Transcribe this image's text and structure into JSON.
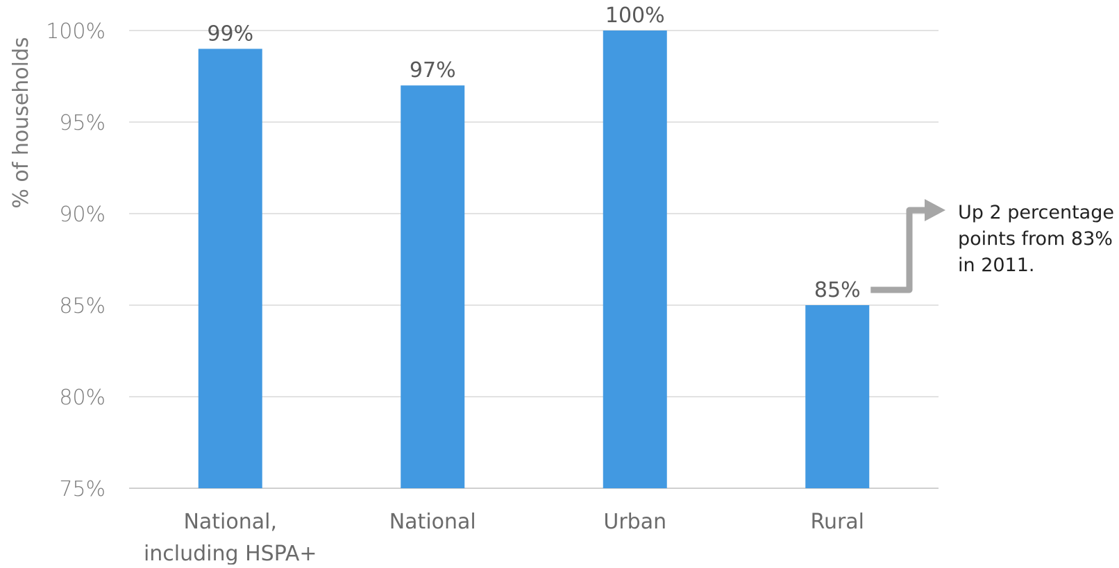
{
  "chart_data": {
    "type": "bar",
    "categories": [
      [
        "National,",
        "including HSPA+"
      ],
      [
        "National"
      ],
      [
        "Urban"
      ],
      [
        "Rural"
      ]
    ],
    "values": [
      99,
      97,
      100,
      85
    ],
    "data_labels": [
      "99%",
      "97%",
      "100%",
      "85%"
    ],
    "ylabel": "% of households",
    "ylim": [
      75,
      100
    ],
    "yticks": [
      75,
      80,
      85,
      90,
      95,
      100
    ],
    "ytick_labels": [
      "75%",
      "80%",
      "85%",
      "90%",
      "95%",
      "100%"
    ],
    "grid": true,
    "colors": {
      "bar": "#4299e1",
      "annotation_arrow": "#a6a6a6"
    },
    "annotation": {
      "target_category_index": 3,
      "lines": [
        "Up 2 percentage",
        "points from 83%",
        "in 2011."
      ]
    }
  }
}
